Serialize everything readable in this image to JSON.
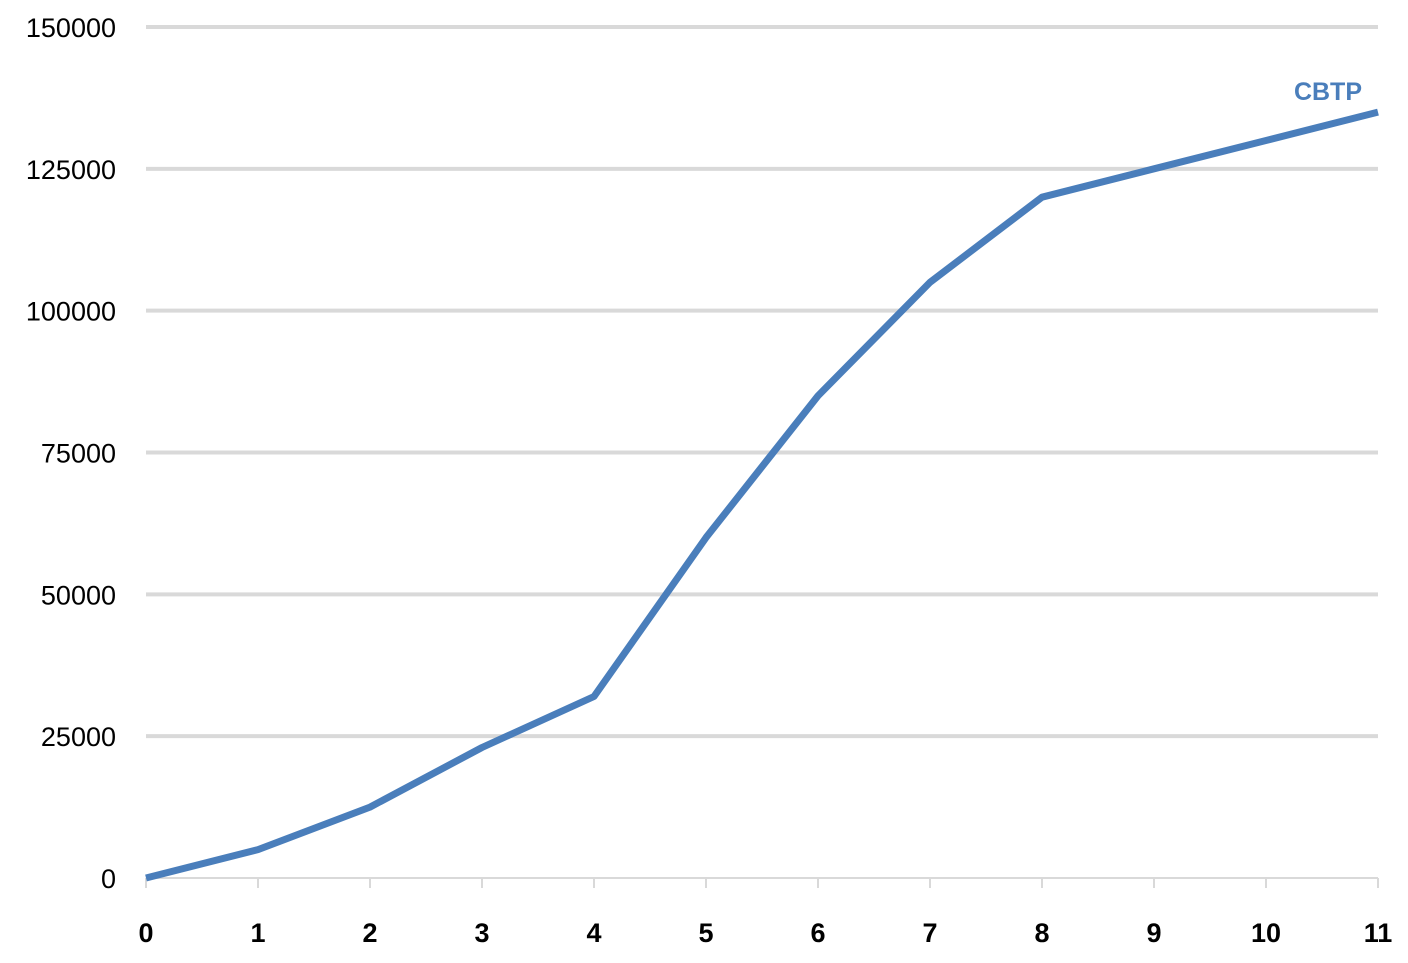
{
  "chart_data": {
    "type": "line",
    "title": "",
    "xlabel": "",
    "ylabel": "",
    "x": [
      0,
      1,
      2,
      3,
      4,
      5,
      6,
      7,
      8,
      9,
      10,
      11
    ],
    "x_tick_labels": [
      "0",
      "1",
      "2",
      "3",
      "4",
      "5",
      "6",
      "7",
      "8",
      "9",
      "10",
      "11"
    ],
    "y_tick_labels": [
      "0",
      "25000",
      "50000",
      "75000",
      "100000",
      "125000",
      "150000"
    ],
    "y_ticks": [
      0,
      25000,
      50000,
      75000,
      100000,
      125000,
      150000
    ],
    "xlim": [
      0,
      11
    ],
    "ylim": [
      0,
      150000
    ],
    "grid": true,
    "series": [
      {
        "name": "CBTP",
        "color": "#4a7ebb",
        "values": [
          0,
          5000,
          12500,
          23000,
          32000,
          60000,
          85000,
          105000,
          120000,
          125000,
          130000,
          135000
        ]
      }
    ]
  }
}
